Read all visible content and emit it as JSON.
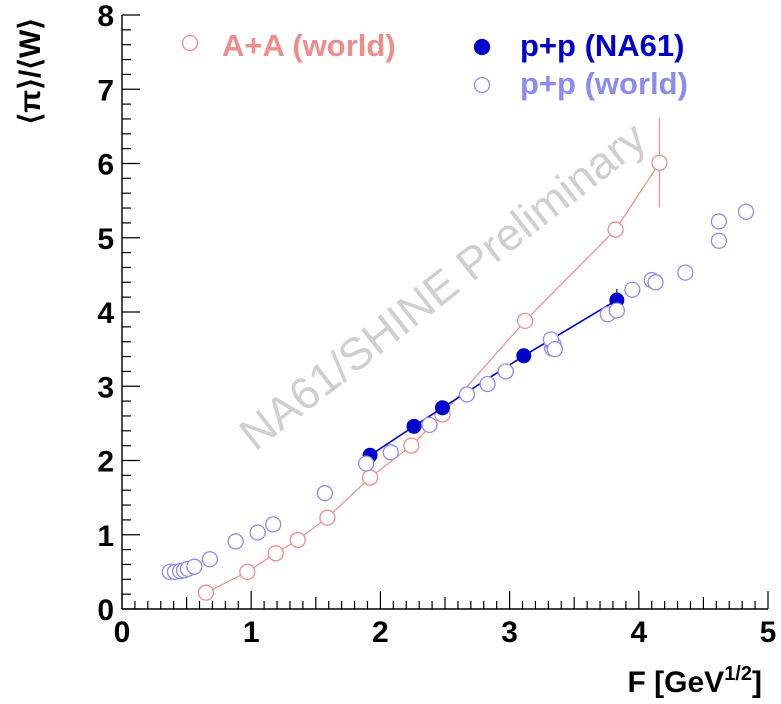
{
  "chart_data": {
    "type": "scatter",
    "title": "",
    "xlabel": "F [GeV",
    "xlabel_sup": "1/2",
    "xlabel_close": "]",
    "ylabel": "⟨π⟩/⟨W⟩",
    "xlim": [
      0,
      5
    ],
    "ylim": [
      0,
      8
    ],
    "x_ticks": [
      "0",
      "1",
      "2",
      "3",
      "4",
      "5"
    ],
    "y_ticks": [
      "0",
      "1",
      "2",
      "3",
      "4",
      "5",
      "6",
      "7",
      "8"
    ],
    "legend_position": "top",
    "watermark": "NA61/SHINE Preliminary",
    "series": [
      {
        "name": "A+A (world)",
        "color": "#f08c8c",
        "marker": "open-circle",
        "line": true,
        "points": [
          {
            "x": 0.65,
            "y": 0.22
          },
          {
            "x": 0.97,
            "y": 0.5
          },
          {
            "x": 1.19,
            "y": 0.75
          },
          {
            "x": 1.36,
            "y": 0.93
          },
          {
            "x": 1.59,
            "y": 1.23
          },
          {
            "x": 1.92,
            "y": 1.77
          },
          {
            "x": 2.24,
            "y": 2.2
          },
          {
            "x": 2.48,
            "y": 2.62
          },
          {
            "x": 3.12,
            "y": 3.88
          },
          {
            "x": 3.82,
            "y": 5.11
          },
          {
            "x": 4.16,
            "y": 6.01,
            "err": 0.6
          }
        ]
      },
      {
        "name": "p+p (NA61)",
        "color": "#0000cc",
        "marker": "filled-circle",
        "line": true,
        "points": [
          {
            "x": 1.92,
            "y": 2.07
          },
          {
            "x": 2.26,
            "y": 2.46
          },
          {
            "x": 2.48,
            "y": 2.71
          },
          {
            "x": 3.11,
            "y": 3.41,
            "err": 0.1
          },
          {
            "x": 3.83,
            "y": 4.16,
            "err": 0.15
          }
        ]
      },
      {
        "name": "p+p (world)",
        "color": "#8c8cf0",
        "marker": "open-circle",
        "line": false,
        "points": [
          {
            "x": 0.37,
            "y": 0.5
          },
          {
            "x": 0.41,
            "y": 0.5
          },
          {
            "x": 0.45,
            "y": 0.51
          },
          {
            "x": 0.48,
            "y": 0.52
          },
          {
            "x": 0.51,
            "y": 0.54
          },
          {
            "x": 0.56,
            "y": 0.57
          },
          {
            "x": 0.68,
            "y": 0.67
          },
          {
            "x": 0.88,
            "y": 0.91
          },
          {
            "x": 1.05,
            "y": 1.03
          },
          {
            "x": 1.17,
            "y": 1.14
          },
          {
            "x": 1.57,
            "y": 1.56
          },
          {
            "x": 1.89,
            "y": 1.96
          },
          {
            "x": 2.08,
            "y": 2.11
          },
          {
            "x": 2.38,
            "y": 2.48
          },
          {
            "x": 2.67,
            "y": 2.89
          },
          {
            "x": 2.83,
            "y": 3.03
          },
          {
            "x": 2.97,
            "y": 3.2
          },
          {
            "x": 3.33,
            "y": 3.51
          },
          {
            "x": 3.34,
            "y": 3.56
          },
          {
            "x": 3.32,
            "y": 3.63
          },
          {
            "x": 3.35,
            "y": 3.5
          },
          {
            "x": 3.76,
            "y": 3.97
          },
          {
            "x": 3.83,
            "y": 4.02
          },
          {
            "x": 3.95,
            "y": 4.3
          },
          {
            "x": 4.1,
            "y": 4.43
          },
          {
            "x": 4.13,
            "y": 4.4
          },
          {
            "x": 4.36,
            "y": 4.53
          },
          {
            "x": 4.62,
            "y": 4.96
          },
          {
            "x": 4.62,
            "y": 5.22
          },
          {
            "x": 4.83,
            "y": 5.35
          }
        ]
      }
    ]
  }
}
